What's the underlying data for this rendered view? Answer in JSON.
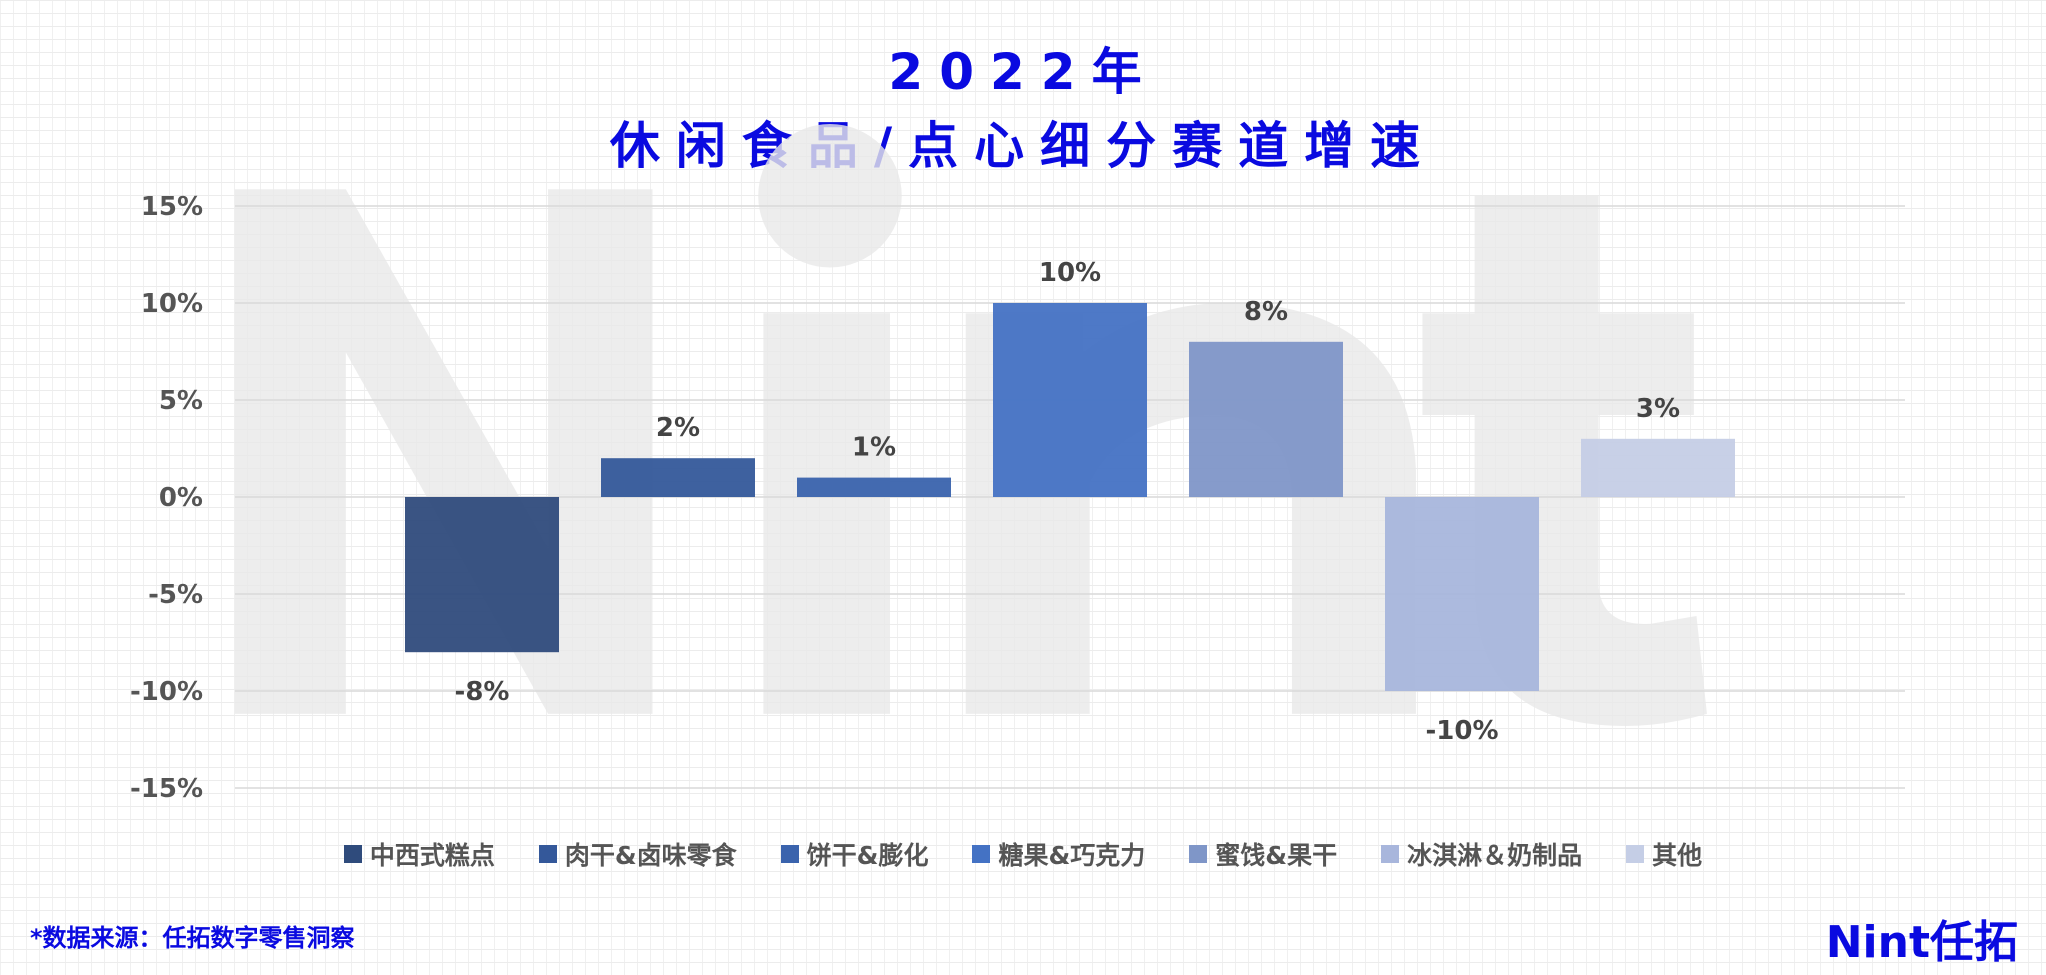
{
  "title_line1": "2022年",
  "title_line2": "休闲食品/点心细分赛道增速",
  "chart_data": {
    "type": "bar",
    "title": "2022年 休闲食品/点心细分赛道增速",
    "categories": [
      "中西式糕点",
      "肉干&卤味零食",
      "饼干&膨化",
      "糖果&巧克力",
      "蜜饯&果干",
      "冰淇淋＆奶制品",
      "其他"
    ],
    "values": [
      -8,
      2,
      1,
      10,
      8,
      -10,
      3
    ],
    "data_labels": [
      "-8%",
      "2%",
      "1%",
      "10%",
      "8%",
      "-10%",
      "3%"
    ],
    "colors": [
      "#2f4b7c",
      "#34589a",
      "#3a63ad",
      "#4472c4",
      "#7f96c8",
      "#a8b6dc",
      "#c5cee6"
    ],
    "ylim": [
      -15,
      15
    ],
    "yticks": [
      15,
      10,
      5,
      0,
      -5,
      -10,
      -15
    ],
    "ytick_labels": [
      "15%",
      "10%",
      "5%",
      "0%",
      "-5%",
      "-10%",
      "-15%"
    ],
    "grid": true,
    "legend": "bottom",
    "xlabel": "",
    "ylabel": ""
  },
  "watermark": "Nint",
  "source": "*数据来源：任拓数字零售洞察",
  "logo": "Nint任拓"
}
